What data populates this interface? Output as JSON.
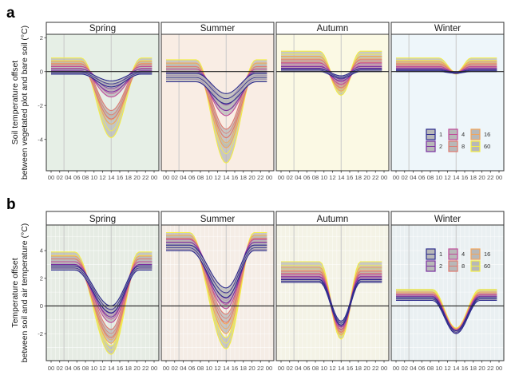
{
  "chart_data": [
    {
      "id": "a",
      "panel_label": "a",
      "type": "line",
      "title": "",
      "ylabel": "Soil temperature offset\nbetween vegetated plot and bare soil (°C)",
      "xlabel": "",
      "ylim": [
        -5.85,
        2.2
      ],
      "yticks": [
        2,
        0,
        -2,
        -4
      ],
      "ytick_labels": [
        "2",
        "0",
        "-2",
        "-4"
      ],
      "xlim": [
        0,
        24
      ],
      "xticks": [
        0,
        2,
        4,
        6,
        8,
        10,
        12,
        14,
        16,
        18,
        20,
        22,
        24
      ],
      "xtick_labels": [
        "00",
        "02",
        "04",
        "06",
        "08",
        "10",
        "12",
        "14",
        "16",
        "18",
        "20",
        "22",
        "00"
      ],
      "reference_vlines": [
        3,
        14
      ],
      "hline": 0,
      "grid": false,
      "legend": {
        "position": "bottom-right",
        "panel": "Winter",
        "entries": [
          "1",
          "2",
          "4",
          "8",
          "16",
          "60"
        ]
      },
      "facets": [
        {
          "name": "Spring",
          "background": "#e6efe6",
          "series": [
            {
              "depth": "1",
              "values_night": [
                0.0,
                -0.15
              ],
              "values_min": [
                -0.55,
                -0.9
              ]
            },
            {
              "depth": "2",
              "values_night": [
                0.15,
                -0.05
              ],
              "values_min": [
                -0.8,
                -1.2
              ]
            },
            {
              "depth": "4",
              "values_night": [
                0.3,
                0.05
              ],
              "values_min": [
                -1.1,
                -1.5
              ]
            },
            {
              "depth": "8",
              "values_night": [
                0.45,
                0.2
              ],
              "values_min": [
                -2.3,
                -2.8
              ]
            },
            {
              "depth": "16",
              "values_night": [
                0.6,
                0.35
              ],
              "values_min": [
                -2.6,
                -3.1
              ]
            },
            {
              "depth": "60",
              "values_night": [
                0.8,
                0.5
              ],
              "values_min": [
                -3.1,
                -3.9
              ]
            }
          ]
        },
        {
          "name": "Summer",
          "background": "#f9ede4",
          "series": [
            {
              "depth": "1",
              "values_night": [
                -0.1,
                -0.6
              ],
              "values_min": [
                -1.3,
                -1.9
              ]
            },
            {
              "depth": "2",
              "values_night": [
                0.0,
                -0.45
              ],
              "values_min": [
                -1.6,
                -2.3
              ]
            },
            {
              "depth": "4",
              "values_night": [
                0.15,
                -0.3
              ],
              "values_min": [
                -2.0,
                -2.6
              ]
            },
            {
              "depth": "8",
              "values_night": [
                0.3,
                -0.15
              ],
              "values_min": [
                -3.4,
                -3.9
              ]
            },
            {
              "depth": "16",
              "values_night": [
                0.5,
                0.0
              ],
              "values_min": [
                -3.9,
                -4.5
              ]
            },
            {
              "depth": "60",
              "values_night": [
                0.7,
                0.2
              ],
              "values_min": [
                -4.3,
                -5.4
              ]
            }
          ]
        },
        {
          "name": "Autumn",
          "background": "#fbf9e4",
          "series": [
            {
              "depth": "1",
              "values_night": [
                0.15,
                0.0
              ],
              "values_min": [
                -0.25,
                -0.4
              ]
            },
            {
              "depth": "2",
              "values_night": [
                0.3,
                0.1
              ],
              "values_min": [
                -0.35,
                -0.55
              ]
            },
            {
              "depth": "4",
              "values_night": [
                0.5,
                0.25
              ],
              "values_min": [
                -0.5,
                -0.75
              ]
            },
            {
              "depth": "8",
              "values_night": [
                0.7,
                0.4
              ],
              "values_min": [
                -0.7,
                -0.95
              ]
            },
            {
              "depth": "16",
              "values_night": [
                0.9,
                0.6
              ],
              "values_min": [
                -0.9,
                -1.15
              ]
            },
            {
              "depth": "60",
              "values_night": [
                1.2,
                0.85
              ],
              "values_min": [
                -1.1,
                -1.4
              ]
            }
          ]
        },
        {
          "name": "Winter",
          "background": "#eef6fa",
          "series": [
            {
              "depth": "1",
              "values_night": [
                0.1,
                0.0
              ],
              "values_min": [
                -0.05,
                -0.1
              ]
            },
            {
              "depth": "2",
              "values_night": [
                0.2,
                0.05
              ],
              "values_min": [
                -0.05,
                -0.1
              ]
            },
            {
              "depth": "4",
              "values_night": [
                0.3,
                0.15
              ],
              "values_min": [
                -0.05,
                -0.1
              ]
            },
            {
              "depth": "8",
              "values_night": [
                0.45,
                0.25
              ],
              "values_min": [
                -0.05,
                -0.12
              ]
            },
            {
              "depth": "16",
              "values_night": [
                0.6,
                0.4
              ],
              "values_min": [
                -0.05,
                -0.12
              ]
            },
            {
              "depth": "60",
              "values_night": [
                0.8,
                0.55
              ],
              "values_min": [
                -0.05,
                -0.15
              ]
            }
          ]
        }
      ]
    },
    {
      "id": "b",
      "panel_label": "b",
      "type": "line",
      "title": "",
      "ylabel": "Temperature offset\nbetween soil and air temperature (°C)",
      "xlabel": "",
      "ylim": [
        -3.95,
        5.85
      ],
      "yticks": [
        4,
        2,
        0,
        -2
      ],
      "ytick_labels": [
        "4",
        "2",
        "0",
        "-2"
      ],
      "xlim": [
        0,
        24
      ],
      "xticks": [
        0,
        2,
        4,
        6,
        8,
        10,
        12,
        14,
        16,
        18,
        20,
        22,
        24
      ],
      "xtick_labels": [
        "00",
        "02",
        "04",
        "06",
        "08",
        "10",
        "12",
        "14",
        "16",
        "18",
        "20",
        "22",
        "00"
      ],
      "reference_vlines": [
        3,
        14
      ],
      "hline": 0,
      "grid": true,
      "legend": {
        "position": "top-right",
        "panel": "Winter",
        "entries": [
          "1",
          "2",
          "4",
          "8",
          "16",
          "60"
        ]
      },
      "facets": [
        {
          "name": "Spring",
          "background": "#e6ece4",
          "series": [
            {
              "depth": "1",
              "values_night": [
                2.9,
                2.6
              ],
              "values_min": [
                0.0,
                -0.5
              ]
            },
            {
              "depth": "2",
              "values_night": [
                3.0,
                2.7
              ],
              "values_min": [
                -0.3,
                -0.8
              ]
            },
            {
              "depth": "4",
              "values_night": [
                3.2,
                2.8
              ],
              "values_min": [
                -0.7,
                -1.2
              ]
            },
            {
              "depth": "8",
              "values_night": [
                3.4,
                3.0
              ],
              "values_min": [
                -1.7,
                -2.3
              ]
            },
            {
              "depth": "16",
              "values_night": [
                3.6,
                3.2
              ],
              "values_min": [
                -2.2,
                -2.7
              ]
            },
            {
              "depth": "60",
              "values_night": [
                3.9,
                3.4
              ],
              "values_min": [
                -2.9,
                -3.5
              ]
            }
          ]
        },
        {
          "name": "Summer",
          "background": "#f5ede6",
          "series": [
            {
              "depth": "1",
              "values_night": [
                4.4,
                4.0
              ],
              "values_min": [
                1.3,
                0.6
              ]
            },
            {
              "depth": "2",
              "values_night": [
                4.6,
                4.1
              ],
              "values_min": [
                0.9,
                0.2
              ]
            },
            {
              "depth": "4",
              "values_night": [
                4.8,
                4.3
              ],
              "values_min": [
                0.4,
                -0.2
              ]
            },
            {
              "depth": "8",
              "values_night": [
                4.9,
                4.4
              ],
              "values_min": [
                -0.6,
                -1.2
              ]
            },
            {
              "depth": "16",
              "values_night": [
                5.1,
                4.6
              ],
              "values_min": [
                -1.3,
                -2.0
              ]
            },
            {
              "depth": "60",
              "values_night": [
                5.3,
                4.8
              ],
              "values_min": [
                -2.3,
                -3.1
              ]
            }
          ]
        },
        {
          "name": "Autumn",
          "background": "#f4f3e6",
          "series": [
            {
              "depth": "1",
              "values_night": [
                1.9,
                1.7
              ],
              "values_min": [
                -1.1,
                -1.4
              ]
            },
            {
              "depth": "2",
              "values_night": [
                2.1,
                1.8
              ],
              "values_min": [
                -1.2,
                -1.5
              ]
            },
            {
              "depth": "4",
              "values_night": [
                2.3,
                2.0
              ],
              "values_min": [
                -1.4,
                -1.7
              ]
            },
            {
              "depth": "8",
              "values_night": [
                2.5,
                2.2
              ],
              "values_min": [
                -1.6,
                -1.9
              ]
            },
            {
              "depth": "16",
              "values_night": [
                2.8,
                2.4
              ],
              "values_min": [
                -1.8,
                -2.1
              ]
            },
            {
              "depth": "60",
              "values_night": [
                3.2,
                2.7
              ],
              "values_min": [
                -2.0,
                -2.4
              ]
            }
          ]
        },
        {
          "name": "Winter",
          "background": "#eaf0f2",
          "series": [
            {
              "depth": "1",
              "values_night": [
                0.6,
                0.4
              ],
              "values_min": [
                -1.8,
                -2.0
              ]
            },
            {
              "depth": "2",
              "values_night": [
                0.7,
                0.5
              ],
              "values_min": [
                -1.8,
                -2.0
              ]
            },
            {
              "depth": "4",
              "values_night": [
                0.8,
                0.6
              ],
              "values_min": [
                -1.75,
                -1.95
              ]
            },
            {
              "depth": "8",
              "values_night": [
                0.9,
                0.7
              ],
              "values_min": [
                -1.7,
                -1.9
              ]
            },
            {
              "depth": "16",
              "values_night": [
                1.0,
                0.8
              ],
              "values_min": [
                -1.65,
                -1.85
              ]
            },
            {
              "depth": "60",
              "values_night": [
                1.2,
                1.0
              ],
              "values_min": [
                -1.6,
                -1.8
              ]
            }
          ]
        }
      ]
    }
  ],
  "depth_colors": {
    "1": "#2b2a8c",
    "2": "#7a2fa0",
    "4": "#c04a9a",
    "8": "#df7a70",
    "16": "#f2a55a",
    "60": "#f4ee44"
  },
  "ribbon_fill": "#b8b8b8",
  "legend_labels": [
    "1",
    "2",
    "4",
    "8",
    "16",
    "60"
  ]
}
